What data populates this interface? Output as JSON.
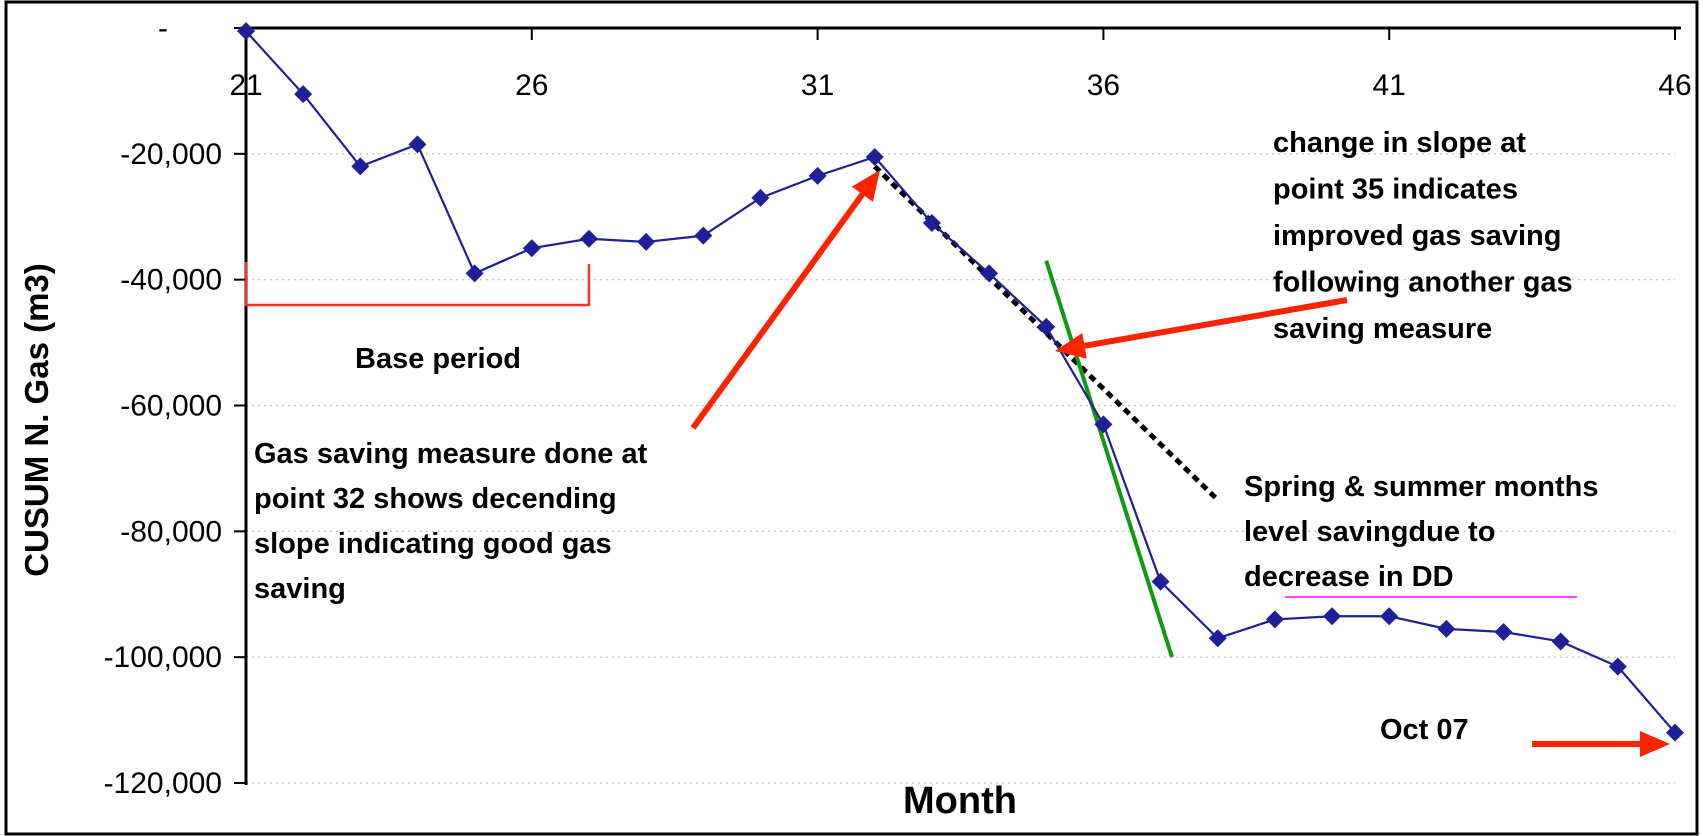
{
  "chart_data": {
    "type": "line",
    "title": "",
    "xlabel": "Month",
    "ylabel": "CUSUM N. Gas (m3)",
    "xlim": [
      21,
      46
    ],
    "ylim": [
      -120000,
      0
    ],
    "x_ticks": [
      "21",
      "26",
      "31",
      "36",
      "41",
      "46"
    ],
    "y_ticks": [
      "-",
      "-20,000",
      "-40,000",
      "-60,000",
      "-80,000",
      "-100,000",
      "-120,000"
    ],
    "grid": "horizontal dotted",
    "legend": "none",
    "series": [
      {
        "color": "#1f1f99",
        "marker": "diamond",
        "x": [
          21,
          22,
          23,
          24,
          25,
          26,
          27,
          28,
          29,
          30,
          31,
          32,
          33,
          34,
          35,
          36,
          37,
          38,
          39,
          40,
          41,
          42,
          43,
          44,
          45,
          46
        ],
        "y": [
          -500,
          -10500,
          -22000,
          -18500,
          -39000,
          -35000,
          -33500,
          -34000,
          -33000,
          -27000,
          -23500,
          -20500,
          -31000,
          -39000,
          -47500,
          -63000,
          -88000,
          -97000,
          -94000,
          -93500,
          -93500,
          -95500,
          -96000,
          -97500,
          -101500,
          -112000
        ]
      }
    ],
    "trend_lines": [
      {
        "name": "slope-after-32",
        "color": "#000000",
        "style": "dotted",
        "x": [
          32,
          38
        ],
        "y": [
          -22000,
          -75000
        ]
      },
      {
        "name": "slope-after-35",
        "color": "#119911",
        "style": "solid",
        "x": [
          35,
          37.2
        ],
        "y": [
          -37000,
          -100000
        ]
      }
    ],
    "annotations": [
      {
        "key": "base",
        "lines": [
          "Base period"
        ]
      },
      {
        "key": "measure32",
        "lines": [
          "Gas saving measure done at",
          "point 32 shows decending",
          "slope indicating good gas",
          "saving"
        ]
      },
      {
        "key": "change35",
        "lines": [
          "change in slope at",
          "point 35 indicates",
          "improved gas saving",
          "following another gas",
          "saving measure"
        ]
      },
      {
        "key": "spring",
        "lines": [
          "Spring & summer months",
          "level savingdue to",
          "decrease in DD"
        ]
      },
      {
        "key": "oct",
        "lines": [
          "Oct 07"
        ]
      }
    ],
    "colors": {
      "series": "#1f1f99",
      "arrow": "#ff2200",
      "bracket": "#ee3322",
      "green_line": "#119911",
      "underline": "#ff44ff"
    }
  }
}
